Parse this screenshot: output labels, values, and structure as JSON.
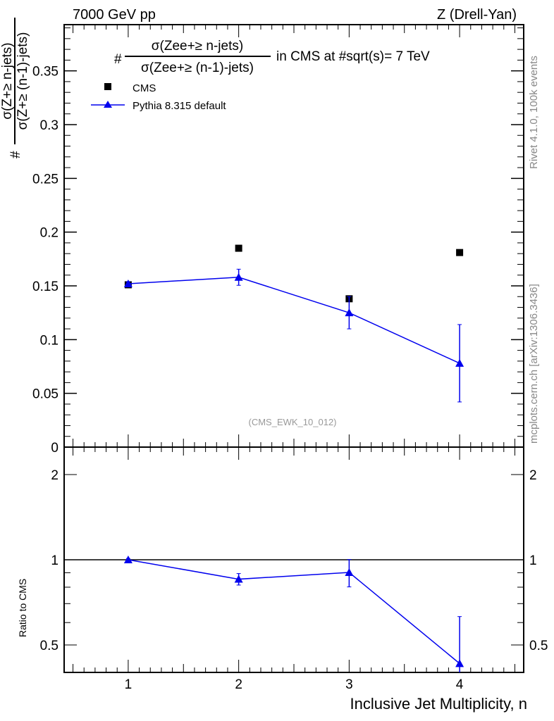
{
  "chart_data": [
    {
      "type": "scatter",
      "header_left": "7000 GeV pp",
      "header_right": "Z (Drell-Yan)",
      "title_prefix": "#",
      "title_numerator": "σ(Zee+≥ n-jets)",
      "title_denominator": "σ(Zee+≥ (n-1)-jets)",
      "title_suffix": "in CMS at #sqrt(s)= 7 TeV",
      "ylabel_prefix": "#",
      "ylabel_numerator": "σ(Z+≥ n-jets)",
      "ylabel_denominator": "σ(Z+≥ (n-1)-jets)",
      "analysis_label": "(CMS_EWK_10_012)",
      "side_label_top": "Rivet 4.1.0,  100k events",
      "side_label_bottom": "mcplots.cern.ch [arXiv:1306.3436]",
      "xlim": [
        0.42,
        4.58
      ],
      "ylim": [
        0,
        0.393
      ],
      "yticks": [
        0,
        0.05,
        0.1,
        0.15,
        0.2,
        0.25,
        0.3,
        0.35
      ],
      "ytick_labels": [
        "0",
        "0.05",
        "0.1",
        "0.15",
        "0.2",
        "0.25",
        "0.3",
        "0.35"
      ],
      "legend": [
        "CMS",
        "Pythia 8.315 default"
      ],
      "legend_position": "top-left",
      "series": [
        {
          "name": "CMS",
          "color": "#000000",
          "marker": "square",
          "x": [
            1,
            2,
            3,
            4
          ],
          "y": [
            0.151,
            0.185,
            0.138,
            0.181
          ]
        },
        {
          "name": "Pythia 8.315 default",
          "color": "#0000ee",
          "marker": "triangle",
          "x": [
            1,
            2,
            3,
            4
          ],
          "y": [
            0.152,
            0.158,
            0.125,
            0.078
          ],
          "yerr": [
            0.002,
            0.0075,
            0.015,
            0.036
          ]
        }
      ]
    },
    {
      "type": "line",
      "ylabel": "Ratio to CMS",
      "xlabel": "Inclusive Jet Multiplicity, n",
      "yscale": "log",
      "xlim": [
        0.42,
        4.58
      ],
      "ylim": [
        0.4,
        2.5
      ],
      "xticks": [
        1,
        2,
        3,
        4
      ],
      "xtick_labels": [
        "1",
        "2",
        "3",
        "4"
      ],
      "yticks": [
        0.5,
        1,
        2
      ],
      "ytick_labels": [
        "0.5",
        "1",
        "2"
      ],
      "series": [
        {
          "name": "Pythia 8.315 default",
          "color": "#0000ee",
          "x": [
            1,
            2,
            3,
            4
          ],
          "y": [
            1.0,
            0.854,
            0.902,
            0.43
          ],
          "yerr": [
            0.01,
            0.04,
            0.1,
            0.2
          ]
        }
      ]
    }
  ]
}
